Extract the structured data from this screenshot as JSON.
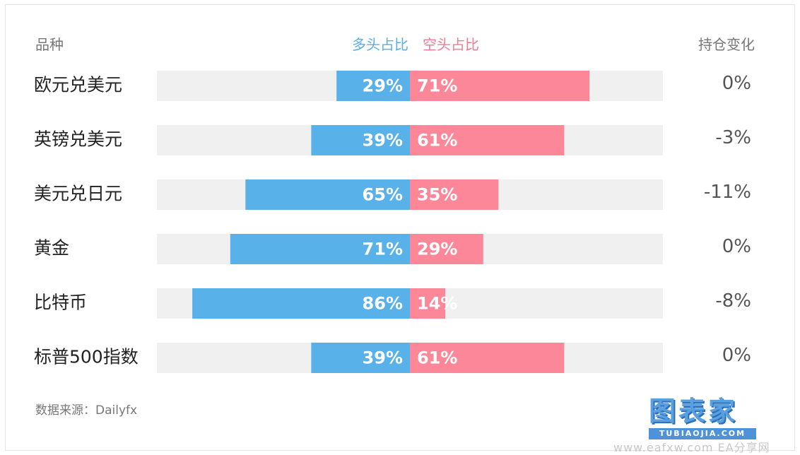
{
  "header": {
    "category_label": "品种",
    "long_label": "多头占比",
    "short_label": "空头占比",
    "change_label": "持仓变化"
  },
  "colors": {
    "long": "#58b1e8",
    "short": "#fb8799",
    "track": "#f0f0f0"
  },
  "chart_data": {
    "type": "bar",
    "categories": [
      "欧元兑美元",
      "英镑兑美元",
      "美元兑日元",
      "黄金",
      "比特币",
      "标普500指数"
    ],
    "series": [
      {
        "name": "多头占比",
        "values": [
          29,
          39,
          65,
          71,
          86,
          39
        ]
      },
      {
        "name": "空头占比",
        "values": [
          71,
          61,
          35,
          29,
          14,
          61
        ]
      }
    ],
    "value_labels_long": [
      "29%",
      "39%",
      "65%",
      "71%",
      "86%",
      "39%"
    ],
    "value_labels_short": [
      "71%",
      "61%",
      "35%",
      "29%",
      "14%",
      "61%"
    ],
    "position_change": [
      "0%",
      "-3%",
      "-11%",
      "0%",
      "-8%",
      "0%"
    ],
    "xlim": [
      -100,
      100
    ],
    "grid": false,
    "legend_position": "top-center"
  },
  "footer": {
    "source": "数据来源：Dailyfx"
  },
  "logo": {
    "main": "图表家",
    "sub": "TUBIAOJIA.COM"
  },
  "watermark": "www.eafxw.com EA分享网"
}
